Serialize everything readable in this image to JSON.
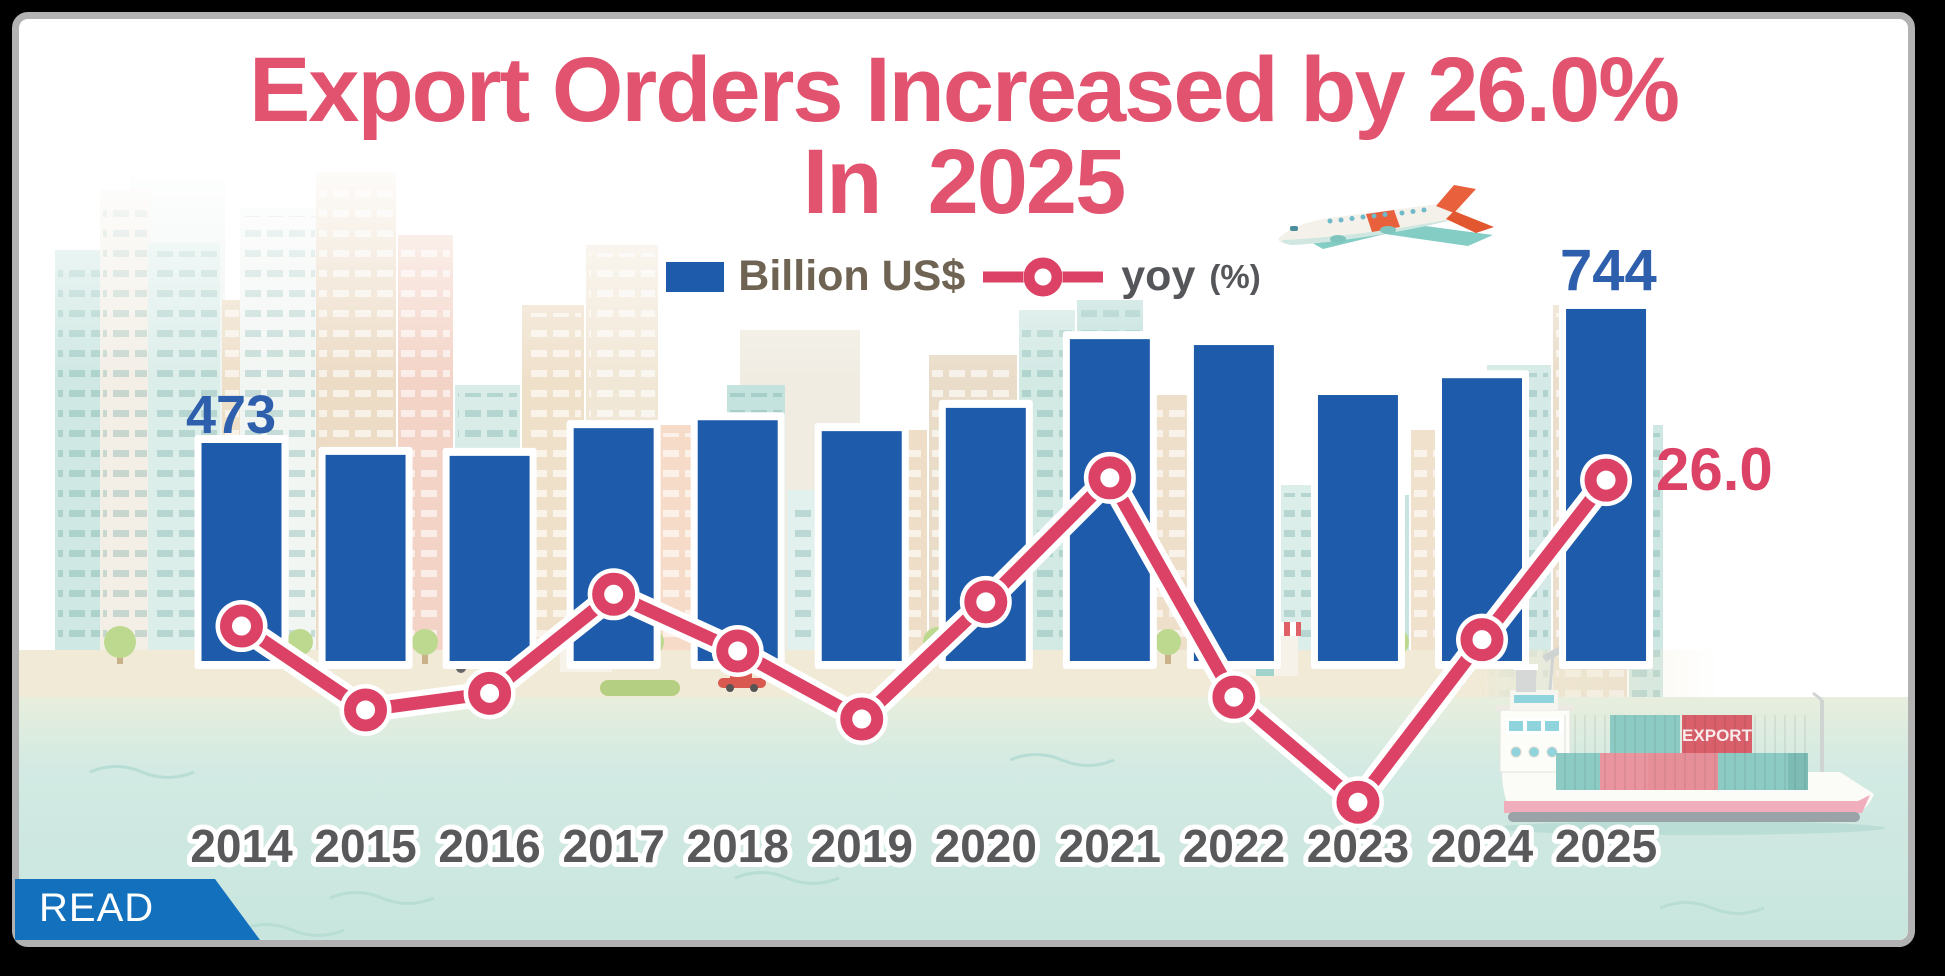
{
  "title": {
    "line1": "Export Orders Increased by 26.0%",
    "line2": "In  2025"
  },
  "legend": {
    "bar_label": "Billion US$",
    "line_label": "yoy",
    "line_label_suffix": "(%)"
  },
  "annotations": {
    "first_bar_value": "473",
    "last_bar_value": "744",
    "last_yoy_value": "26.0"
  },
  "read_button_label": "READ",
  "ship": {
    "container_label": "EXPORT"
  },
  "colors": {
    "title_pink": "#e2536f",
    "bar_blue": "#1e5cab",
    "value_label_blue": "#2e5fad",
    "line_red": "#dc4265",
    "year_label_gray": "#59595b",
    "legend_bar_text": "#6f6453",
    "legend_line_text": "#55565a",
    "read_button_blue": "#1270bd",
    "ground_teal": "#cde8e1"
  },
  "chart_data": {
    "type": "bar",
    "subtype": "bar-line-combo",
    "title": "Export Orders Increased by 26.0% In 2025",
    "categories": [
      "2014",
      "2015",
      "2016",
      "2017",
      "2018",
      "2019",
      "2020",
      "2021",
      "2022",
      "2023",
      "2024",
      "2025"
    ],
    "series": [
      {
        "name": "Billion US$",
        "type": "bar",
        "color": "#1e5cab",
        "values": [
          473,
          449,
          447,
          503,
          519,
          497,
          544,
          683,
          671,
          570,
          604,
          744
        ]
      },
      {
        "name": "yoy(%)",
        "type": "line",
        "color": "#dc4265",
        "values": [
          6.7,
          -4.4,
          -2.2,
          10.9,
          3.4,
          -5.6,
          9.9,
          26.3,
          -2.7,
          -16.6,
          4.9,
          26.0
        ]
      }
    ],
    "xlabel": "",
    "ylabel": "",
    "grid": false,
    "legend_position": "top-center",
    "data_labels": [
      {
        "series": "Billion US$",
        "category": "2014",
        "label": "473"
      },
      {
        "series": "Billion US$",
        "category": "2025",
        "label": "744"
      },
      {
        "series": "yoy(%)",
        "category": "2025",
        "label": "26.0"
      }
    ]
  }
}
